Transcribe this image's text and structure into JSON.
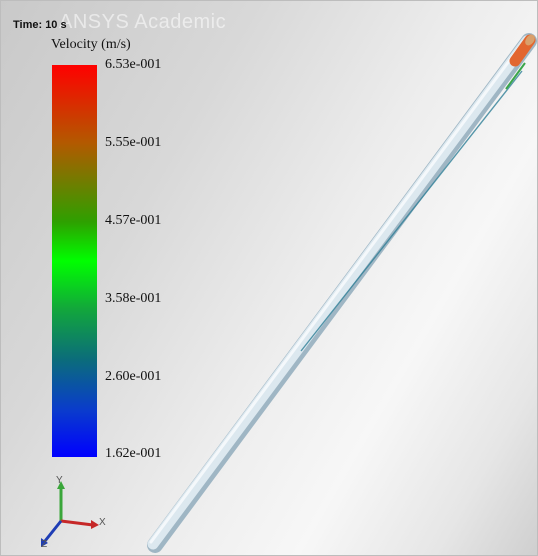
{
  "header": {
    "time": "Time: 10 s",
    "watermark": "ANSYS Academic"
  },
  "legend": {
    "title": "Velocity (m/s)",
    "ticks": [
      "6.53e-001",
      "5.55e-001",
      "4.57e-001",
      "3.58e-001",
      "2.60e-001",
      "1.62e-001"
    ],
    "colors": {
      "max": "#ff0000",
      "upper": "#b25a00",
      "mid": "#00ff00",
      "lower": "#0b6d7a",
      "min": "#0000ff"
    }
  },
  "triad": {
    "x_label": "X",
    "y_label": "Y",
    "z_label": "Z"
  },
  "icons": {
    "scene": "pipe-geometry",
    "triad": "axis-triad-icon"
  }
}
